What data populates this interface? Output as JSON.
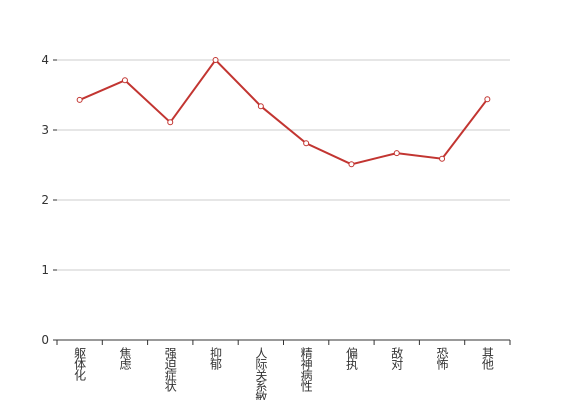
{
  "chart_data": {
    "type": "line",
    "categories": [
      "躯体化",
      "焦虑",
      "强迫症状",
      "抑郁",
      "人际关系敏感",
      "精神病性",
      "偏执",
      "敌对",
      "恐怖",
      "其他"
    ],
    "values": [
      3.43,
      3.71,
      3.11,
      4.0,
      3.34,
      2.81,
      2.51,
      2.67,
      2.59,
      3.44
    ],
    "color": "#c23531",
    "ylim": [
      0,
      4
    ],
    "yticks": [
      0,
      1,
      2,
      3,
      4
    ],
    "grid": true
  }
}
